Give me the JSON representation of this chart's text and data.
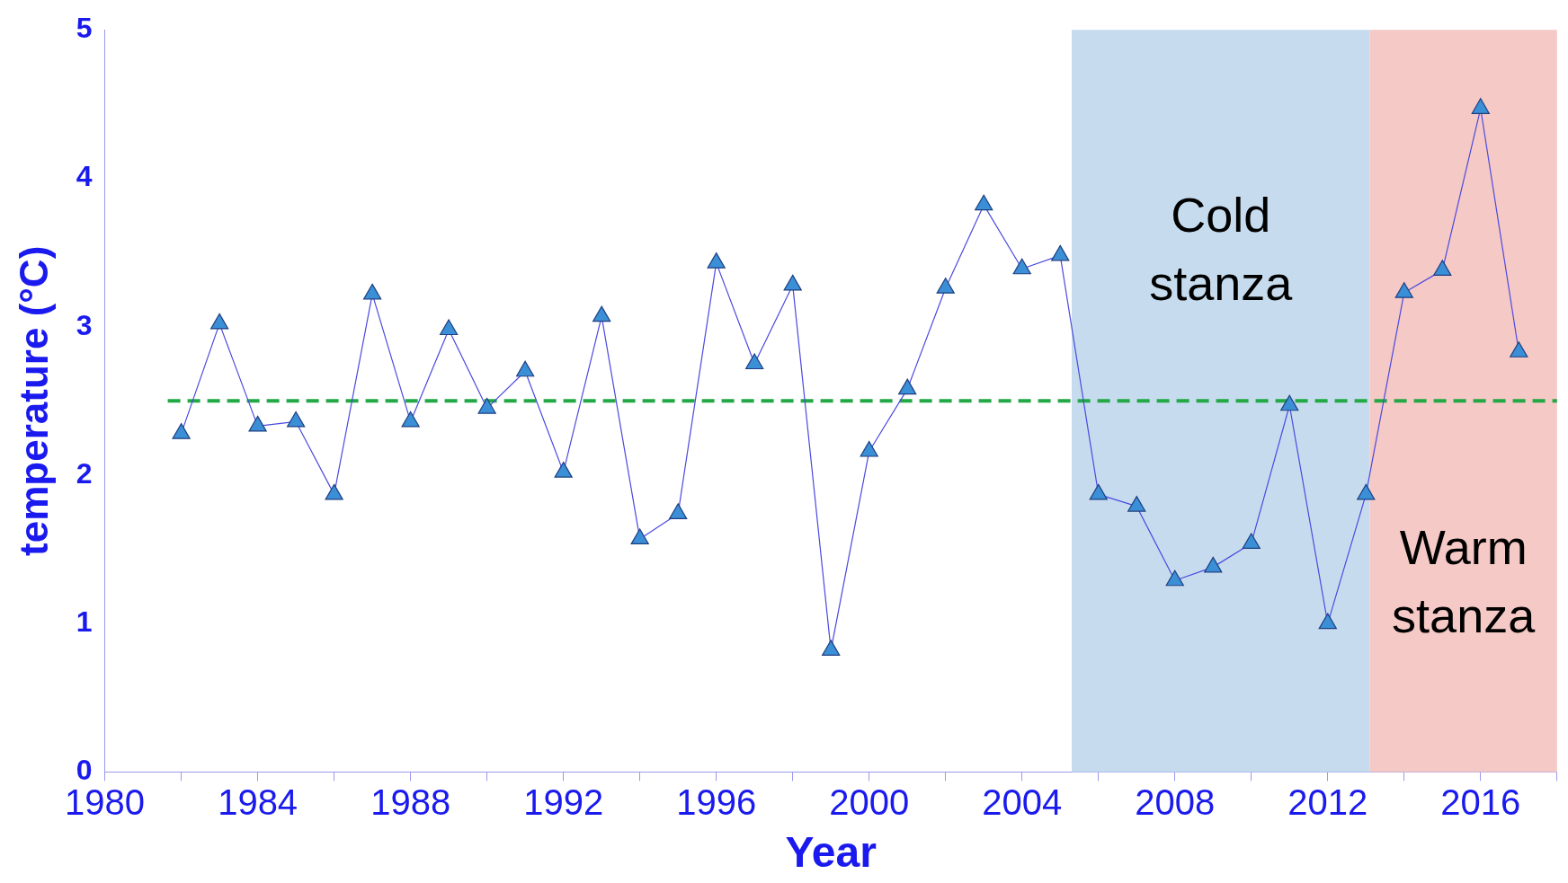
{
  "chart_data": {
    "type": "line",
    "xlabel": "Year",
    "ylabel": "temperature (°C)",
    "x": [
      1982,
      1983,
      1984,
      1985,
      1986,
      1987,
      1988,
      1989,
      1990,
      1991,
      1992,
      1993,
      1994,
      1995,
      1996,
      1997,
      1998,
      1999,
      2000,
      2001,
      2002,
      2003,
      2004,
      2005,
      2006,
      2007,
      2008,
      2009,
      2010,
      2011,
      2012,
      2013,
      2014,
      2015,
      2016,
      2017
    ],
    "series": [
      {
        "color": "#3a8fd6",
        "values": [
          2.28,
          3.02,
          2.33,
          2.36,
          1.87,
          3.22,
          2.36,
          2.98,
          2.45,
          2.7,
          2.02,
          3.07,
          1.57,
          1.74,
          3.43,
          2.75,
          3.28,
          0.82,
          2.16,
          2.58,
          3.26,
          3.82,
          3.39,
          3.48,
          1.87,
          1.79,
          1.29,
          1.38,
          1.54,
          2.47,
          1.0,
          1.87,
          3.23,
          3.38,
          4.47,
          2.83
        ]
      }
    ],
    "xlim": [
      1980,
      2018
    ],
    "xticks": [
      1980,
      {
        "value": 1982,
        "label": null
      },
      1984,
      {
        "value": 1986,
        "label": null
      },
      1988,
      {
        "value": 1990,
        "label": null
      },
      1992,
      {
        "value": 1994,
        "label": null
      },
      1996,
      {
        "value": 1998,
        "label": null
      },
      2000,
      {
        "value": 2002,
        "label": null
      },
      2004,
      {
        "value": 2006,
        "label": null
      },
      2008,
      {
        "value": 2010,
        "label": null
      },
      2012,
      {
        "value": 2014,
        "label": null
      },
      2016,
      {
        "value": 2018,
        "label": null
      }
    ],
    "ylim": [
      0,
      5
    ],
    "yticks": [
      0,
      1,
      2,
      3,
      4,
      5
    ],
    "grid": false,
    "legend": false,
    "marker": "triangle",
    "line_style": "solid",
    "ref_lines": [
      {
        "axis": "y",
        "value": 2.5,
        "color": "#22a844",
        "line_style": "dashed"
      }
    ],
    "bands": [
      {
        "axis": "x",
        "from": 2005.3,
        "to": 2013.1,
        "label": "Cold stanza",
        "color": "#c6dcee"
      },
      {
        "axis": "x",
        "from": 2013.1,
        "to": 2018,
        "label": "Warm stanza",
        "color": "#f5c9c5"
      }
    ]
  }
}
